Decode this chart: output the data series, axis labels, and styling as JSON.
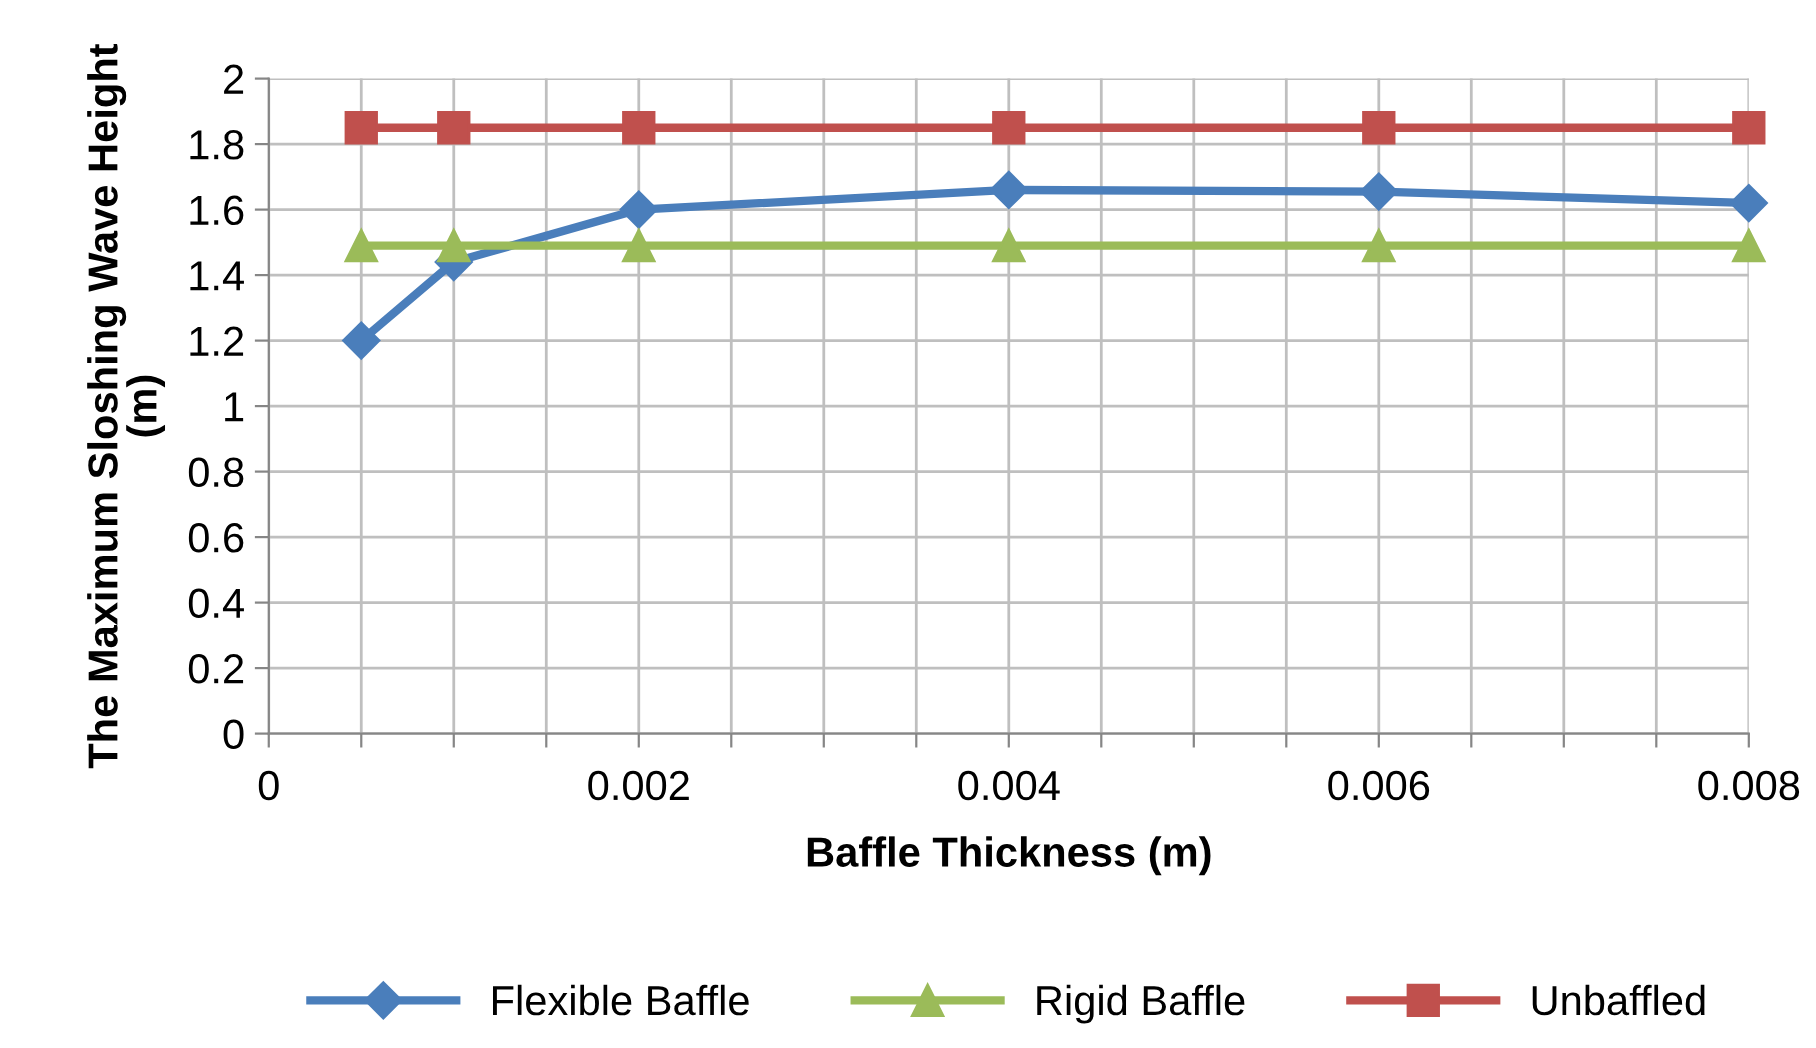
{
  "chart_data": {
    "type": "line",
    "xlabel": "Baffle Thickness (m)",
    "ylabel": "The Maximum Sloshing Wave Height\n(m)",
    "x": [
      0.0005,
      0.001,
      0.002,
      0.004,
      0.006,
      0.008
    ],
    "series": [
      {
        "name": "Flexible Baffle",
        "color": "#4a7ebb",
        "marker": "diamond",
        "values": [
          1.2,
          1.44,
          1.6,
          1.66,
          1.655,
          1.62
        ]
      },
      {
        "name": "Rigid Baffle",
        "color": "#9bbb59",
        "marker": "triangle",
        "values": [
          1.49,
          1.49,
          1.49,
          1.49,
          1.49,
          1.49
        ]
      },
      {
        "name": "Unbaffled",
        "color": "#c0504d",
        "marker": "square",
        "values": [
          1.85,
          1.85,
          1.85,
          1.85,
          1.85,
          1.85
        ]
      }
    ],
    "xlim": [
      0,
      0.008
    ],
    "xticks": [
      0,
      {
        "value": 0.0005,
        "label": null
      },
      {
        "value": 0.001,
        "label": null
      },
      {
        "value": 0.0015,
        "label": null
      },
      {
        "value": 0.002,
        "label": "0.002"
      },
      {
        "value": 0.0025,
        "label": null
      },
      {
        "value": 0.003,
        "label": null
      },
      {
        "value": 0.0035,
        "label": null
      },
      {
        "value": 0.004,
        "label": "0.004"
      },
      {
        "value": 0.0045,
        "label": null
      },
      {
        "value": 0.005,
        "label": null
      },
      {
        "value": 0.0055,
        "label": null
      },
      {
        "value": 0.006,
        "label": "0.006"
      },
      {
        "value": 0.0065,
        "label": null
      },
      {
        "value": 0.007,
        "label": null
      },
      {
        "value": 0.0075,
        "label": null
      },
      {
        "value": 0.008,
        "label": "0.008"
      }
    ],
    "ylim": [
      0,
      2
    ],
    "yticks": [
      0,
      0.2,
      0.4,
      0.6,
      0.8,
      1,
      1.2,
      1.4,
      1.6,
      1.8,
      2
    ],
    "grid": true,
    "legend": "bottom",
    "line_style": "solid"
  }
}
